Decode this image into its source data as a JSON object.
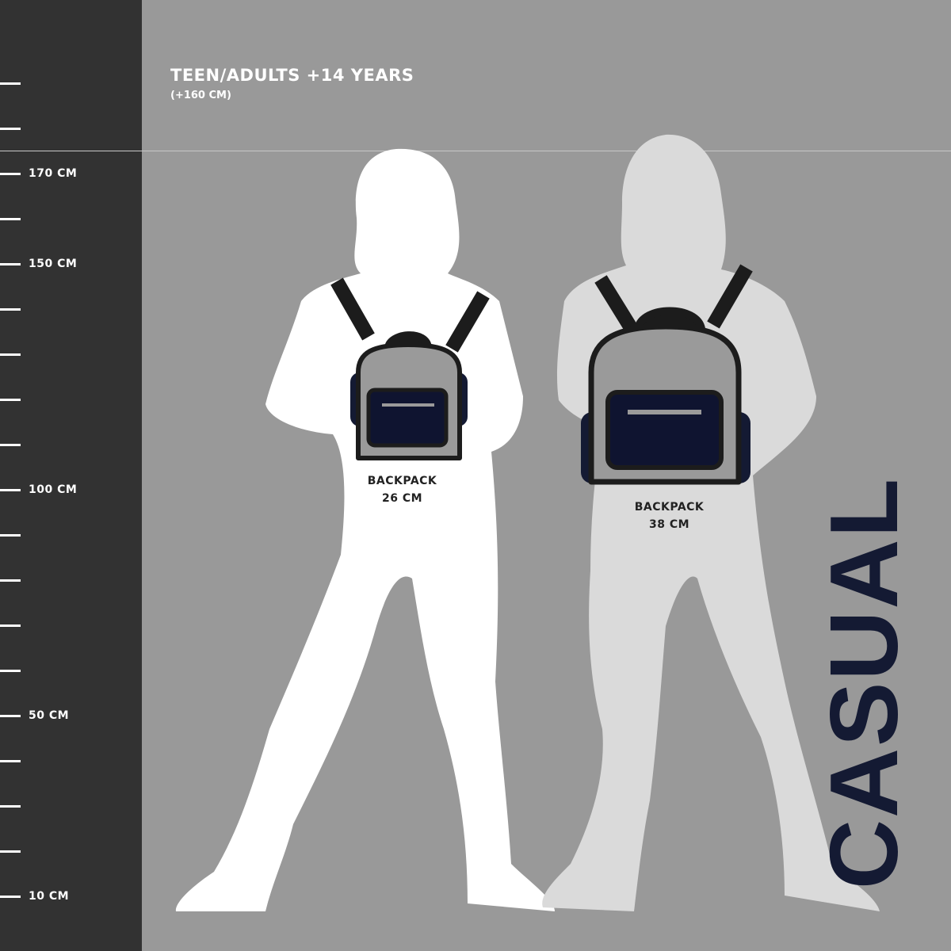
{
  "header": {
    "title": "TEEN/ADULTS +14 YEARS",
    "subtitle": "(+160 CM)"
  },
  "ruler": {
    "labels": [
      {
        "text": "170 CM",
        "cm": 170
      },
      {
        "text": "150 CM",
        "cm": 150
      },
      {
        "text": "100 CM",
        "cm": 100
      },
      {
        "text": "50 CM",
        "cm": 50
      },
      {
        "text": "10 CM",
        "cm": 10
      }
    ]
  },
  "figures": [
    {
      "backpack_label": "BACKPACK",
      "backpack_size": "26 CM",
      "silhouette_color": "#ffffff"
    },
    {
      "backpack_label": "BACKPACK",
      "backpack_size": "38 CM",
      "silhouette_color": "#dadada"
    }
  ],
  "brand": {
    "text": "CASUAL",
    "color": "#141a33"
  },
  "colors": {
    "background": "#999999",
    "ruler": "#323232",
    "backpack_body": "#9a9a9a",
    "pocket": "#0f1430",
    "outline": "#1c1c1c"
  }
}
